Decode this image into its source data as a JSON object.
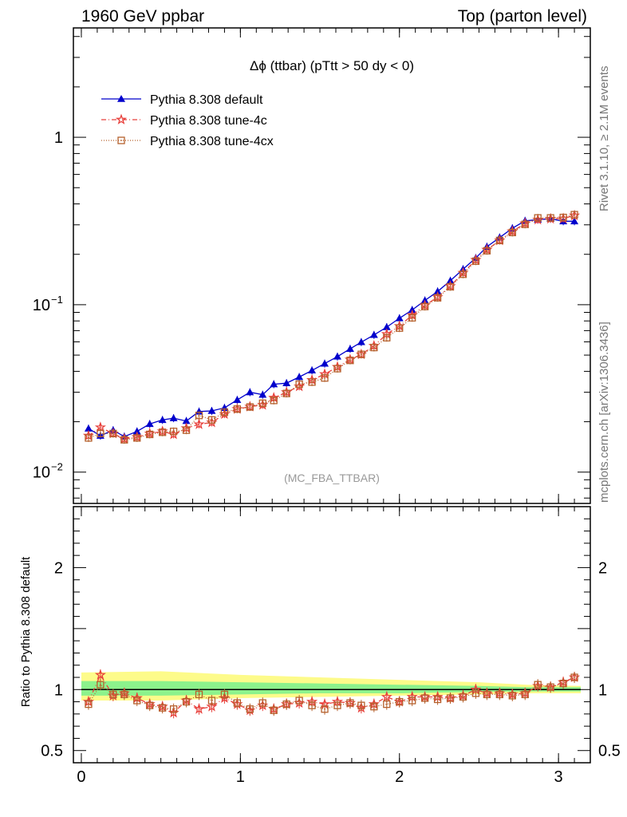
{
  "header": {
    "left": "1960 GeV ppbar",
    "right": "Top (parton level)"
  },
  "side": {
    "top": "Rivet 3.1.10, ≥ 2.1M events",
    "bottom": "mcplots.cern.ch [arXiv:1306.3436]"
  },
  "chart_data": [
    {
      "type": "line",
      "panel": "main",
      "title": "Δϕ (ttbar) (pTtt > 50 dy < 0)",
      "watermark": "(MC_FBA_TTBAR)",
      "yscale": "log",
      "xlim": [
        -0.05,
        3.2
      ],
      "ylim": [
        0.0065,
        4.5
      ],
      "x_ticks": [
        0,
        1,
        2,
        3
      ],
      "y_ticks": [
        {
          "value": 0.01,
          "base": "10",
          "exp": "−2"
        },
        {
          "value": 0.1,
          "base": "10",
          "exp": "−1"
        },
        {
          "value": 1,
          "base": "1",
          "exp": ""
        }
      ],
      "x": [
        0.045,
        0.12,
        0.2,
        0.27,
        0.35,
        0.43,
        0.51,
        0.58,
        0.66,
        0.74,
        0.82,
        0.9,
        0.98,
        1.06,
        1.14,
        1.21,
        1.29,
        1.37,
        1.45,
        1.53,
        1.61,
        1.69,
        1.76,
        1.84,
        1.92,
        2.0,
        2.08,
        2.16,
        2.24,
        2.32,
        2.4,
        2.48,
        2.55,
        2.63,
        2.71,
        2.79,
        2.87,
        2.95,
        3.03,
        3.1
      ],
      "legend": [
        {
          "name": "Pythia 8.308 default",
          "color": "#0000cc",
          "marker": "triangle",
          "dash": ""
        },
        {
          "name": "Pythia 8.308 tune-4c",
          "color": "#e8413c",
          "marker": "star",
          "dash": "6,3,1,3"
        },
        {
          "name": "Pythia 8.308 tune-4cx",
          "color": "#b5602c",
          "marker": "square",
          "dash": "1,2"
        }
      ],
      "series": [
        {
          "name": "Pythia 8.308 default",
          "values": [
            0.0182,
            0.0165,
            0.0178,
            0.0163,
            0.0175,
            0.0194,
            0.0205,
            0.021,
            0.0202,
            0.023,
            0.0232,
            0.0242,
            0.027,
            0.03,
            0.029,
            0.0335,
            0.034,
            0.037,
            0.0405,
            0.0445,
            0.049,
            0.0545,
            0.0598,
            0.066,
            0.0735,
            0.083,
            0.093,
            0.106,
            0.12,
            0.139,
            0.163,
            0.19,
            0.222,
            0.252,
            0.286,
            0.317,
            0.322,
            0.326,
            0.315,
            0.315
          ]
        },
        {
          "name": "Pythia 8.308 tune-4c",
          "values": [
            0.0165,
            0.0185,
            0.017,
            0.0158,
            0.0162,
            0.017,
            0.0175,
            0.0168,
            0.0183,
            0.0193,
            0.0198,
            0.0222,
            0.0238,
            0.0246,
            0.0252,
            0.0278,
            0.03,
            0.0325,
            0.0355,
            0.0385,
            0.0425,
            0.047,
            0.0505,
            0.0568,
            0.0668,
            0.0745,
            0.0865,
            0.099,
            0.111,
            0.129,
            0.155,
            0.185,
            0.213,
            0.242,
            0.274,
            0.306,
            0.322,
            0.326,
            0.327,
            0.341
          ]
        },
        {
          "name": "Pythia 8.308 tune-4cx",
          "values": [
            0.016,
            0.017,
            0.017,
            0.0156,
            0.016,
            0.0168,
            0.0173,
            0.0175,
            0.0178,
            0.0218,
            0.0205,
            0.0228,
            0.0238,
            0.0245,
            0.0258,
            0.0268,
            0.0295,
            0.0335,
            0.0345,
            0.0365,
            0.0415,
            0.0465,
            0.0505,
            0.0555,
            0.0635,
            0.0725,
            0.0835,
            0.0975,
            0.11,
            0.128,
            0.152,
            0.182,
            0.21,
            0.242,
            0.27,
            0.302,
            0.33,
            0.33,
            0.332,
            0.345
          ]
        }
      ]
    },
    {
      "type": "line",
      "panel": "ratio",
      "ylabel": "Ratio to Pythia 8.308 default",
      "xlim": [
        -0.05,
        3.2
      ],
      "ylim": [
        0.4,
        2.5
      ],
      "x_ticks": [
        0,
        1,
        2,
        3
      ],
      "y_ticks": [
        {
          "value": 0.5,
          "label": "0.5"
        },
        {
          "value": 1,
          "label": "1"
        },
        {
          "value": 2,
          "label": "2"
        }
      ],
      "band_x": [
        0.0,
        0.5,
        1.0,
        1.5,
        2.0,
        2.5,
        2.8,
        3.14
      ],
      "band_yellow_lo": [
        0.91,
        0.91,
        0.93,
        0.94,
        0.95,
        0.96,
        0.97,
        0.97
      ],
      "band_yellow_hi": [
        1.14,
        1.15,
        1.12,
        1.1,
        1.08,
        1.06,
        1.04,
        1.03
      ],
      "band_green_lo": [
        0.95,
        0.95,
        0.96,
        0.97,
        0.97,
        0.98,
        0.985,
        0.985
      ],
      "band_green_hi": [
        1.07,
        1.07,
        1.06,
        1.05,
        1.04,
        1.03,
        1.02,
        1.02
      ],
      "x": [
        0.045,
        0.12,
        0.2,
        0.27,
        0.35,
        0.43,
        0.51,
        0.58,
        0.66,
        0.74,
        0.82,
        0.9,
        0.98,
        1.06,
        1.14,
        1.21,
        1.29,
        1.37,
        1.45,
        1.53,
        1.61,
        1.69,
        1.76,
        1.84,
        1.92,
        2.0,
        2.08,
        2.16,
        2.24,
        2.32,
        2.4,
        2.48,
        2.55,
        2.63,
        2.71,
        2.79,
        2.87,
        2.95,
        3.03,
        3.1
      ],
      "series": [
        {
          "name": "Pythia 8.308 tune-4c",
          "values": [
            0.9,
            1.12,
            0.95,
            0.97,
            0.93,
            0.88,
            0.86,
            0.81,
            0.91,
            0.84,
            0.86,
            0.93,
            0.88,
            0.83,
            0.87,
            0.84,
            0.88,
            0.89,
            0.9,
            0.88,
            0.9,
            0.89,
            0.85,
            0.88,
            0.94,
            0.9,
            0.94,
            0.94,
            0.94,
            0.93,
            0.95,
            1.0,
            0.97,
            0.97,
            0.96,
            0.97,
            1.03,
            1.02,
            1.06,
            1.1
          ]
        },
        {
          "name": "Pythia 8.308 tune-4cx",
          "values": [
            0.88,
            1.04,
            0.96,
            0.96,
            0.91,
            0.87,
            0.85,
            0.84,
            0.9,
            0.96,
            0.91,
            0.96,
            0.89,
            0.84,
            0.89,
            0.83,
            0.88,
            0.91,
            0.87,
            0.84,
            0.87,
            0.89,
            0.87,
            0.86,
            0.88,
            0.9,
            0.91,
            0.93,
            0.92,
            0.93,
            0.94,
            0.97,
            0.96,
            0.96,
            0.95,
            0.96,
            1.04,
            1.02,
            1.05,
            1.1
          ]
        }
      ]
    }
  ]
}
